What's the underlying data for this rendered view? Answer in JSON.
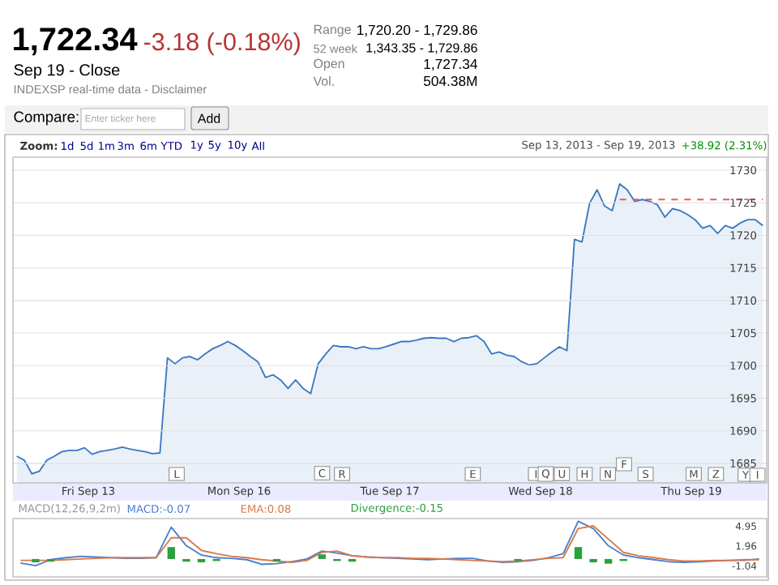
{
  "chart_data": [
    {
      "type": "area",
      "title": "1,722.34",
      "subtitle": "-3.18 (-0.18%)",
      "annotations": [
        "Sep 19 - Close",
        "INDEXSP real-time data - Disclaimer",
        "Range",
        "1,720.20 - 1,729.86",
        "52 week",
        "1,343.35 - 1,729.86",
        "Open",
        "1,727.34",
        "Vol.",
        "504.38M",
        "Compare:",
        "Enter ticker here",
        "Add",
        "Zoom:",
        "1d",
        "5d",
        "1m",
        "3m",
        "6m",
        "YTD",
        "1y",
        "5y",
        "10y",
        "All",
        "Sep 13, 2013 - Sep 19, 2013",
        "+38.92 (2.31%)",
        "Fri Sep 13",
        "Mon Sep 16",
        "Tue Sep 17",
        "Wed Sep 18",
        "Thu Sep 19",
        "L",
        "C",
        "R",
        "E",
        "I",
        "Q",
        "U",
        "H",
        "N",
        "F",
        "S",
        "M",
        "Z",
        "Y",
        "I"
      ],
      "categories": [
        null,
        null,
        null,
        null,
        null,
        null,
        null,
        null,
        null,
        null,
        null,
        null,
        null,
        null,
        null,
        null,
        null,
        null,
        null,
        null,
        null,
        null,
        null,
        null,
        null,
        null,
        null,
        null,
        null,
        null,
        null,
        null,
        null,
        null,
        null,
        null,
        null,
        null,
        null,
        null,
        null,
        null,
        null,
        null,
        null,
        null,
        null,
        null,
        null,
        null,
        null,
        null,
        null,
        null,
        null,
        null,
        null,
        null,
        null,
        null,
        null,
        null,
        null,
        null,
        null,
        null,
        null,
        null,
        null,
        null,
        null,
        null,
        null,
        null,
        null,
        null,
        null,
        null,
        null,
        null,
        null,
        null,
        null,
        null,
        null,
        null,
        null,
        null,
        null,
        null,
        null,
        null,
        null,
        null,
        null,
        null,
        null,
        null,
        null,
        null
      ],
      "ylim": [
        1682,
        1732
      ],
      "yticks": [
        1685,
        1690,
        1695,
        1700,
        1705,
        1710,
        1715,
        1720,
        1725,
        1730
      ],
      "tick_labels": "y",
      "grid": "y",
      "series": [
        {
          "color": "#3b78c0",
          "values": [
            1686.1,
            1685.5,
            1683.4,
            1683.8,
            1685.5,
            1686.1,
            1686.8,
            1687.0,
            1687.0,
            1687.4,
            1686.4,
            1686.8,
            1687.0,
            1687.2,
            1687.5,
            1687.2,
            1687.0,
            1686.8,
            1686.5,
            1686.6,
            1701.2,
            1700.3,
            1701.2,
            1701.4,
            1700.9,
            1701.8,
            1702.6,
            1703.1,
            1703.7,
            1703.1,
            1702.3,
            1701.4,
            1700.6,
            1698.2,
            1698.6,
            1697.8,
            1696.5,
            1697.8,
            1696.5,
            1695.7,
            1700.3,
            1701.8,
            1703.1,
            1702.9,
            1702.9,
            1702.6,
            1702.9,
            1702.6,
            1702.6,
            1702.9,
            1703.3,
            1703.7,
            1703.7,
            1703.9,
            1704.2,
            1704.3,
            1704.2,
            1704.2,
            1703.7,
            1704.2,
            1704.3,
            1704.6,
            1703.7,
            1701.8,
            1702.1,
            1701.6,
            1701.4,
            1700.6,
            1700.1,
            1700.3,
            1701.2,
            1702.1,
            1702.9,
            1702.3,
            1719.4,
            1719.0,
            1724.9,
            1727.0,
            1724.5,
            1723.8,
            1727.9,
            1727.0,
            1725.2,
            1725.5,
            1725.2,
            1724.7,
            1722.8,
            1724.1,
            1723.8,
            1723.2,
            1722.4,
            1721.1,
            1721.5,
            1720.3,
            1721.5,
            1721.1,
            1721.9,
            1722.4,
            1722.4,
            1721.5
          ]
        },
        {
          "type": "line",
          "line_style": "dashed",
          "color": "#e06060",
          "values": [
            null,
            null,
            null,
            null,
            null,
            null,
            null,
            null,
            null,
            null,
            null,
            null,
            null,
            null,
            null,
            null,
            null,
            null,
            null,
            null,
            null,
            null,
            null,
            null,
            null,
            null,
            null,
            null,
            null,
            null,
            null,
            null,
            null,
            null,
            null,
            null,
            null,
            null,
            null,
            null,
            null,
            null,
            null,
            null,
            null,
            null,
            null,
            null,
            null,
            null,
            null,
            null,
            null,
            null,
            null,
            null,
            null,
            null,
            null,
            null,
            null,
            null,
            null,
            null,
            null,
            null,
            null,
            null,
            null,
            null,
            null,
            null,
            null,
            null,
            null,
            null,
            null,
            null,
            null,
            null,
            1725.5,
            1725.5,
            1725.5,
            1725.5,
            1725.5,
            1725.5,
            1725.5,
            1725.5,
            1725.5,
            1725.5,
            1725.5,
            1725.5,
            1725.5,
            1725.5,
            1725.5,
            1725.5,
            1725.5,
            1725.5,
            1725.5,
            1725.5
          ]
        }
      ]
    },
    {
      "type": "line",
      "title": "MACD(12,26,9,2m)",
      "categories": [
        null,
        null,
        null,
        null,
        null,
        null,
        null,
        null,
        null,
        null,
        null,
        null,
        null,
        null,
        null,
        null,
        null,
        null,
        null,
        null,
        null,
        null,
        null,
        null,
        null,
        null,
        null,
        null,
        null,
        null,
        null,
        null,
        null,
        null,
        null,
        null,
        null,
        null,
        null,
        null,
        null,
        null,
        null,
        null,
        null,
        null,
        null,
        null,
        null,
        null
      ],
      "ylim": [
        -2.7,
        6.1
      ],
      "yticks": [
        4.95,
        1.96,
        -1.04
      ],
      "tick_labels": "y",
      "series": [
        {
          "name": "MACD:-0.07",
          "color": "#4a7fd0",
          "values": [
            -0.6,
            -1.0,
            -0.1,
            0.2,
            0.4,
            0.3,
            0.2,
            0.1,
            0.1,
            0.2,
            4.8,
            2.0,
            0.6,
            0.2,
            0.1,
            -0.1,
            -0.8,
            -0.7,
            -0.4,
            0.0,
            1.2,
            0.9,
            0.5,
            0.3,
            0.2,
            0.1,
            0.0,
            -0.1,
            0.0,
            0.1,
            0.1,
            -0.3,
            -0.5,
            -0.4,
            -0.2,
            0.2,
            0.8,
            5.7,
            4.6,
            2.0,
            0.6,
            0.2,
            -0.1,
            -0.4,
            -0.5,
            -0.4,
            -0.3,
            -0.2,
            -0.2,
            0.0
          ]
        },
        {
          "name": "EMA:0.08",
          "color": "#d9784a",
          "values": [
            -0.2,
            -0.2,
            -0.2,
            -0.1,
            0.0,
            0.1,
            0.2,
            0.2,
            0.2,
            0.2,
            3.2,
            3.2,
            1.3,
            0.8,
            0.4,
            0.2,
            -0.1,
            -0.3,
            -0.5,
            -0.2,
            1.0,
            1.2,
            0.5,
            0.3,
            0.2,
            0.2,
            0.1,
            0.1,
            0.0,
            -0.1,
            -0.2,
            -0.3,
            -0.4,
            -0.3,
            -0.1,
            0.1,
            0.2,
            4.6,
            5.0,
            3.0,
            1.0,
            0.5,
            0.2,
            -0.1,
            -0.3,
            -0.3,
            -0.2,
            -0.2,
            -0.1,
            -0.1
          ]
        },
        {
          "name": "Divergence:-0.15",
          "type": "bar",
          "color": "#2e9e3e",
          "values": [
            null,
            -0.5,
            -0.4,
            null,
            null,
            null,
            null,
            null,
            null,
            null,
            1.8,
            -0.4,
            -0.5,
            -0.3,
            null,
            null,
            null,
            -0.4,
            null,
            null,
            0.7,
            -0.3,
            -0.4,
            null,
            null,
            null,
            null,
            null,
            null,
            null,
            null,
            null,
            null,
            -0.3,
            null,
            null,
            null,
            1.8,
            -0.5,
            -0.7,
            -0.3,
            null,
            null,
            null,
            null,
            null,
            null,
            null,
            null,
            null
          ]
        }
      ]
    }
  ]
}
